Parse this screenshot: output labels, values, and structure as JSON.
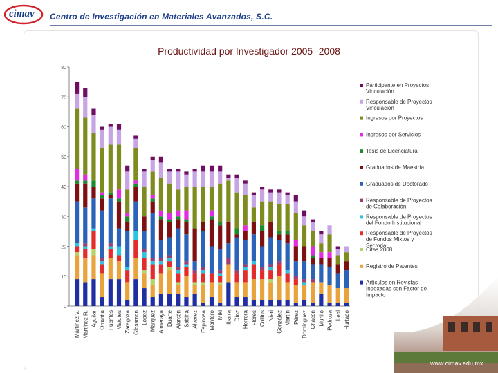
{
  "header": {
    "logo_text": "cimav",
    "org_name": "Centro de Investigación en Materiales Avanzados, S.C."
  },
  "footer": {
    "url": "www.cimav.edu.mx"
  },
  "colors": {
    "header_blue": "#1e3f8a",
    "title": "#6a1010",
    "url_color": "#ffffff"
  },
  "chart_data": {
    "type": "bar",
    "stacked": true,
    "title": "Productividad por Investigador  2005 -2008",
    "ylim": [
      0,
      80
    ],
    "yticks": [
      "0",
      "10",
      "20",
      "30",
      "40",
      "50",
      "60",
      "70",
      "80"
    ],
    "grid": false,
    "legend_position": "right",
    "categories": [
      "Martínez V.",
      "Martínez R.",
      "Aguilar",
      "Orrantia",
      "Fuentes",
      "Matutes",
      "Zaragoza",
      "Glossman",
      "López",
      "Márquez",
      "Almeraya",
      "Duarte",
      "Alarcón",
      "Sabina",
      "Álvarez",
      "Espinosa",
      "Montero",
      "Miki",
      "Ibarra",
      "Díaz",
      "Herrera",
      "Flores",
      "Collins",
      "Nieri",
      "González",
      "Martín",
      "Pérez",
      "Domínguez",
      "Chacón",
      "Murillo",
      "Pedroza",
      "Leal",
      "Hurtado"
    ],
    "series": [
      {
        "name": "Artículos en Revistas Indexadas con Factor de Impacto",
        "color": "#1f2fa3",
        "values": [
          9,
          8,
          9,
          3,
          9,
          9,
          2,
          9,
          6,
          3,
          4,
          4,
          4,
          3,
          4,
          1,
          3,
          1,
          8,
          3,
          3,
          2,
          2,
          2,
          2,
          2,
          1,
          2,
          1,
          4,
          1,
          1,
          1
        ]
      },
      {
        "name": "Registro de Patentes",
        "color": "#e8a33d",
        "values": [
          8,
          8,
          8,
          8,
          7,
          6,
          6,
          7,
          5,
          4,
          7,
          8,
          3,
          7,
          3,
          6,
          5,
          6,
          6,
          5,
          5,
          7,
          7,
          6,
          8,
          6,
          6,
          5,
          7,
          4,
          6,
          5,
          5
        ]
      },
      {
        "name": "Citas 2008",
        "color": "#b3d36b",
        "values": [
          1,
          0,
          2,
          0,
          0,
          0,
          0,
          0,
          1,
          2,
          0,
          1,
          1,
          0,
          1,
          1,
          0,
          1,
          0,
          0,
          0,
          0,
          0,
          1,
          0,
          0,
          0,
          0,
          0,
          0,
          0,
          0,
          0
        ]
      },
      {
        "name": "Responsable de Proyectos de Fondos Mixtos y Sectorial",
        "color": "#e32c2c",
        "values": [
          2,
          3,
          6,
          3,
          3,
          2,
          4,
          6,
          4,
          5,
          3,
          2,
          3,
          3,
          3,
          3,
          3,
          2,
          0,
          3,
          4,
          5,
          3,
          3,
          4,
          3,
          2,
          0,
          0,
          0,
          0,
          0,
          0
        ]
      },
      {
        "name": "Responsable de Proyectos del Fondo Institucional",
        "color": "#2ec4e0",
        "values": [
          1,
          1,
          1,
          1,
          1,
          3,
          1,
          3,
          2,
          1,
          1,
          1,
          1,
          1,
          0,
          1,
          0,
          1,
          0,
          0,
          1,
          1,
          0,
          1,
          0,
          1,
          0,
          1,
          0,
          0,
          0,
          0,
          0
        ]
      },
      {
        "name": "Responsable de Proyectos de Colaboración",
        "color": "#9b3f70",
        "values": [
          0,
          1,
          0,
          1,
          1,
          0,
          0,
          0,
          1,
          1,
          1,
          1,
          1,
          1,
          1,
          1,
          0,
          1,
          2,
          1,
          1,
          0,
          1,
          1,
          1,
          0,
          1,
          1,
          1,
          0,
          0,
          0,
          0
        ]
      },
      {
        "name": "Graduados de Doctorado",
        "color": "#2a63b8",
        "values": [
          14,
          12,
          10,
          16,
          15,
          6,
          12,
          10,
          6,
          15,
          6,
          6,
          13,
          9,
          3,
          12,
          9,
          7,
          5,
          11,
          8,
          9,
          7,
          9,
          7,
          9,
          5,
          6,
          5,
          6,
          6,
          5,
          6
        ]
      },
      {
        "name": "Graduados de Maestría",
        "color": "#7d1010",
        "values": [
          6,
          8,
          4,
          4,
          1,
          9,
          3,
          5,
          5,
          4,
          7,
          5,
          3,
          4,
          11,
          3,
          9,
          8,
          7,
          1,
          3,
          4,
          5,
          5,
          2,
          3,
          5,
          5,
          2,
          2,
          3,
          3,
          3
        ]
      },
      {
        "name": "Tesis de Licenciatura",
        "color": "#1c8a2e",
        "values": [
          1,
          1,
          2,
          1,
          1,
          1,
          2,
          1,
          0,
          1,
          1,
          1,
          1,
          1,
          0,
          0,
          1,
          1,
          0,
          2,
          0,
          0,
          2,
          0,
          1,
          1,
          0,
          0,
          1,
          0,
          0,
          0,
          0
        ]
      },
      {
        "name": "Ingresos por Servicios",
        "color": "#e42de0",
        "values": [
          4,
          2,
          0,
          1,
          0,
          3,
          1,
          1,
          0,
          1,
          2,
          2,
          2,
          3,
          0,
          0,
          2,
          0,
          0,
          0,
          2,
          0,
          0,
          0,
          0,
          0,
          2,
          0,
          3,
          2,
          2,
          0,
          0
        ]
      },
      {
        "name": "Ingresos por Proyectos",
        "color": "#7e8c1f",
        "values": [
          20,
          19,
          16,
          15,
          16,
          15,
          8,
          11,
          10,
          8,
          11,
          10,
          7,
          8,
          14,
          12,
          8,
          13,
          14,
          12,
          10,
          5,
          8,
          7,
          9,
          9,
          9,
          7,
          5,
          3,
          6,
          3,
          3
        ]
      },
      {
        "name": "Responsable de Proyectos Vinculación",
        "color": "#c7a4e3",
        "values": [
          5,
          7,
          6,
          6,
          6,
          5,
          6,
          3,
          5,
          4,
          5,
          4,
          6,
          4,
          5,
          5,
          5,
          4,
          1,
          5,
          4,
          4,
          4,
          3,
          4,
          3,
          4,
          3,
          3,
          3,
          3,
          2,
          2
        ]
      },
      {
        "name": "Participante en Proyectos Vinculación",
        "color": "#6e0f61",
        "values": [
          4,
          3,
          2,
          1,
          1,
          2,
          2,
          1,
          1,
          1,
          2,
          1,
          1,
          1,
          1,
          2,
          2,
          2,
          1,
          1,
          1,
          1,
          1,
          1,
          1,
          1,
          2,
          2,
          1,
          1,
          0,
          1,
          0
        ]
      }
    ]
  }
}
